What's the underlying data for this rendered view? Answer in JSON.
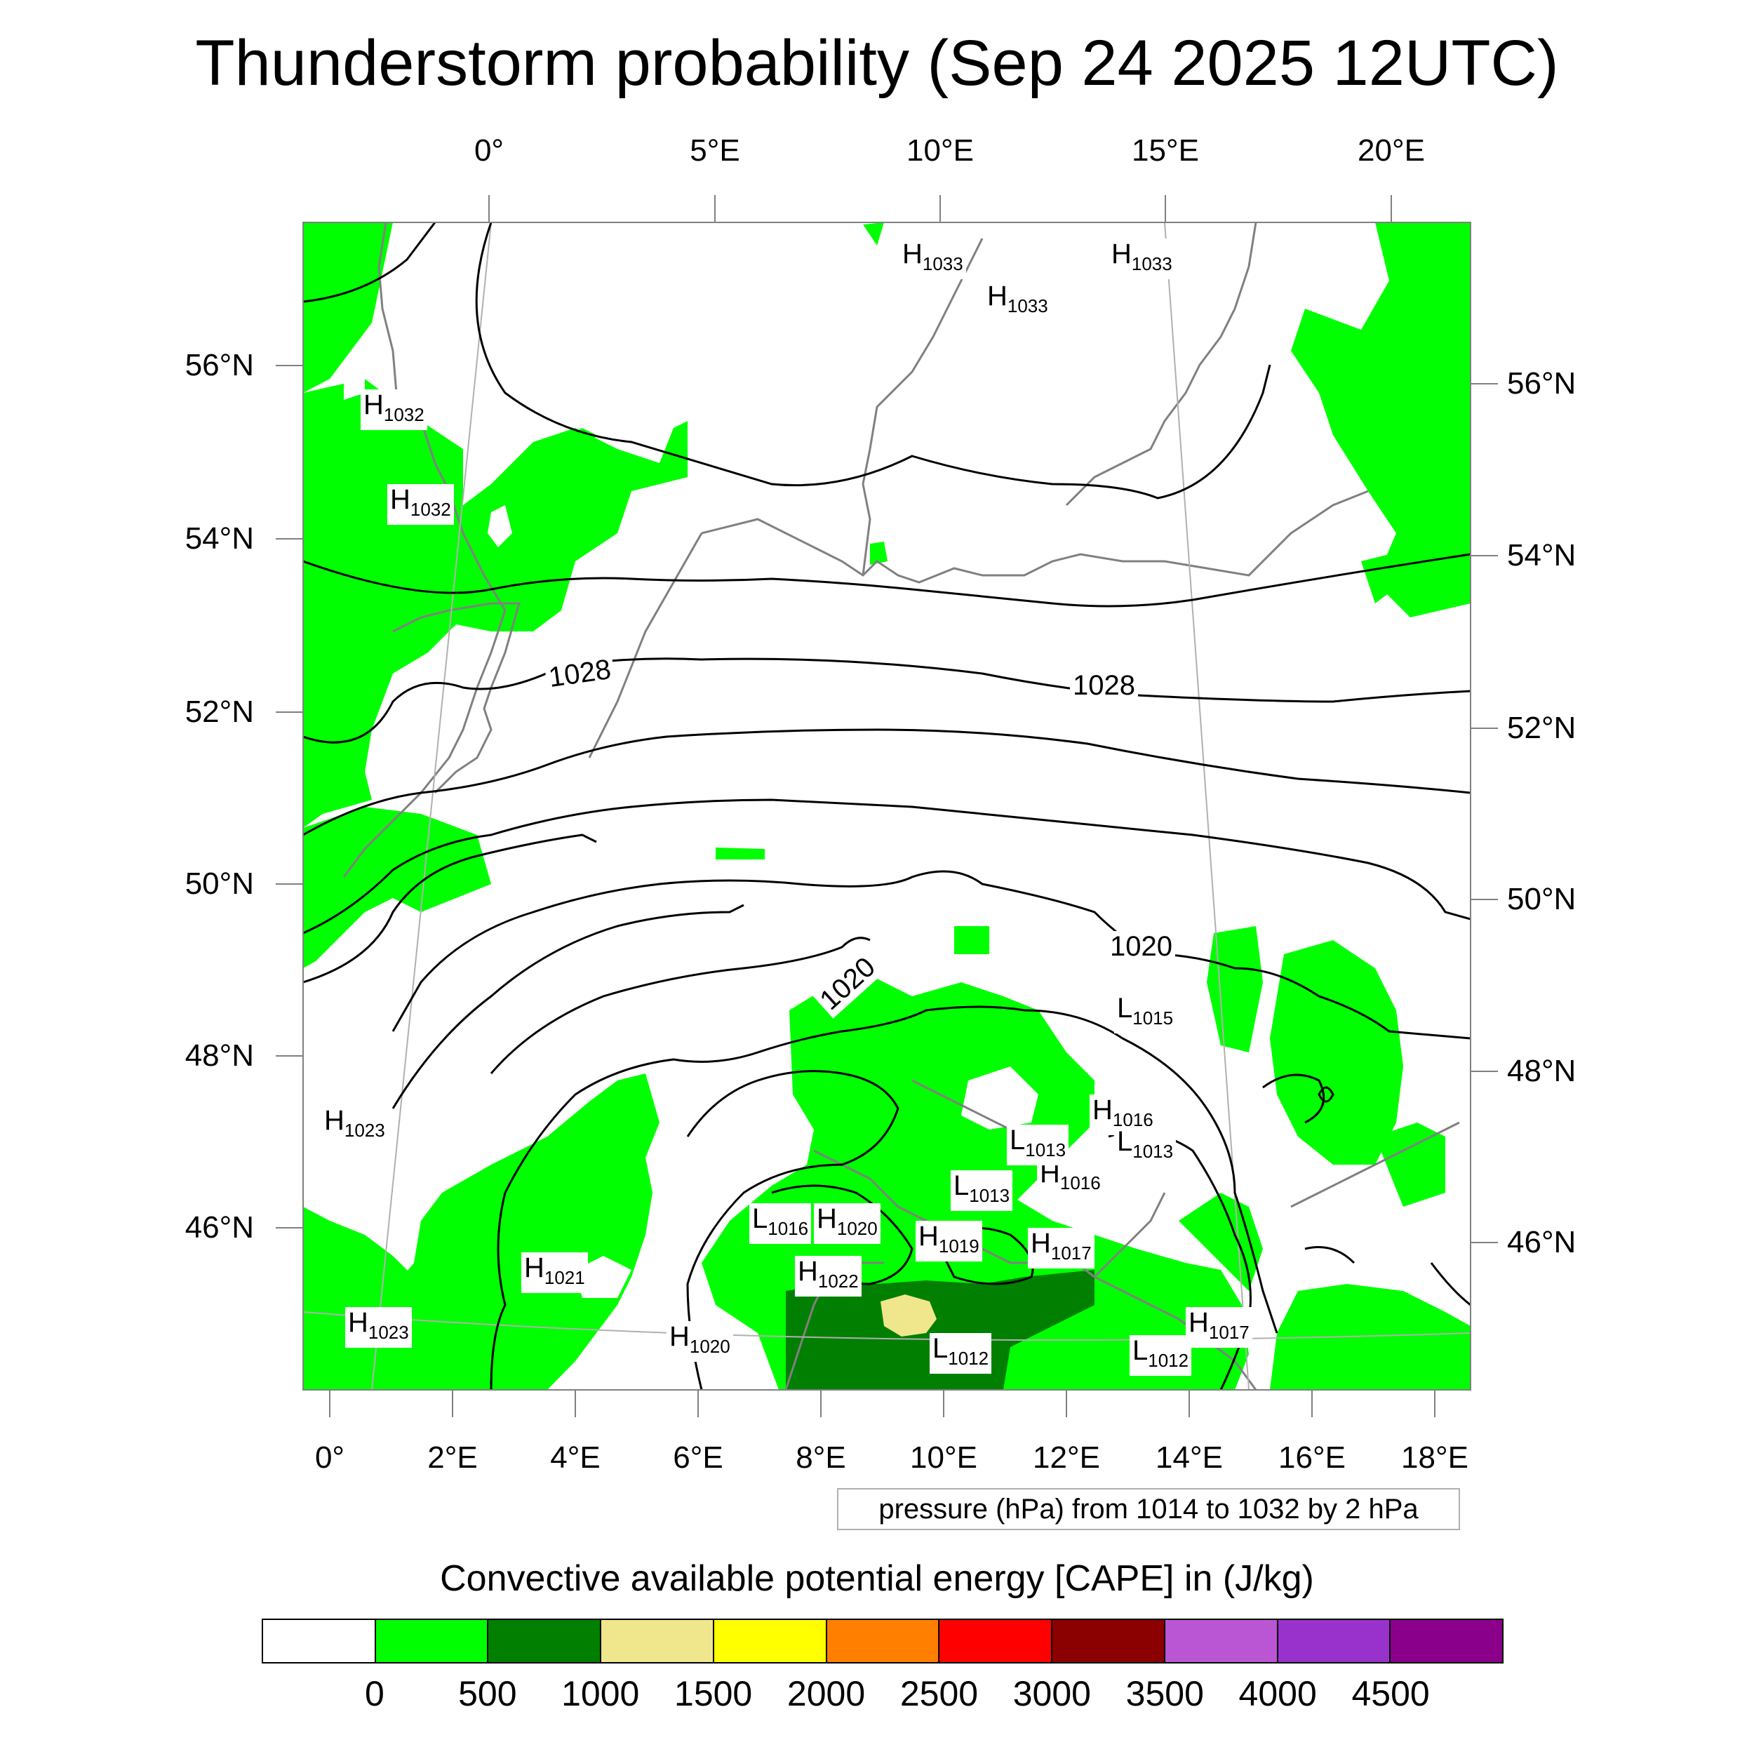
{
  "title": "Thunderstorm probability (Sep 24 2025 12UTC)",
  "map": {
    "top_lon_ticks": [
      "0°",
      "5°E",
      "10°E",
      "15°E",
      "20°E"
    ],
    "bottom_lon_ticks": [
      "0°",
      "2°E",
      "4°E",
      "6°E",
      "8°E",
      "10°E",
      "12°E",
      "14°E",
      "16°E",
      "18°E"
    ],
    "left_lat_ticks": [
      "56°N",
      "54°N",
      "52°N",
      "50°N",
      "48°N",
      "46°N"
    ],
    "right_lat_ticks": [
      "56°N",
      "54°N",
      "52°N",
      "50°N",
      "48°N",
      "46°N"
    ],
    "pressure_centers": [
      {
        "type": "H",
        "value": "1033"
      },
      {
        "type": "H",
        "value": "1033"
      },
      {
        "type": "H",
        "value": "1033"
      },
      {
        "type": "H",
        "value": "1032"
      },
      {
        "type": "H",
        "value": "1032"
      },
      {
        "type": "H",
        "value": "1023"
      },
      {
        "type": "H",
        "value": "1023"
      },
      {
        "type": "H",
        "value": "1021"
      },
      {
        "type": "H",
        "value": "1020"
      },
      {
        "type": "H",
        "value": "1020"
      },
      {
        "type": "H",
        "value": "1022"
      },
      {
        "type": "H",
        "value": "1019"
      },
      {
        "type": "H",
        "value": "1017"
      },
      {
        "type": "H",
        "value": "1016"
      },
      {
        "type": "H",
        "value": "1016"
      },
      {
        "type": "H",
        "value": "1017"
      },
      {
        "type": "L",
        "value": "1016"
      },
      {
        "type": "L",
        "value": "1013"
      },
      {
        "type": "L",
        "value": "1013"
      },
      {
        "type": "L",
        "value": "1013"
      },
      {
        "type": "L",
        "value": "1015"
      },
      {
        "type": "L",
        "value": "1012"
      },
      {
        "type": "L",
        "value": "1012"
      }
    ],
    "isobar_labels": [
      "1028",
      "1028",
      "1020",
      "1020"
    ],
    "colors": {
      "cape_low": "#00ff00",
      "cape_mid": "#007f00",
      "cape_high": "#f0e68c",
      "coastline": "#808080",
      "isobar": "#000000"
    }
  },
  "pressure_note": "pressure (hPa) from 1014 to 1032 by 2 hPa",
  "colorbar": {
    "title": "Convective available potential energy [CAPE] in (J/kg)",
    "colors": [
      "#ffffff",
      "#00ff00",
      "#007f00",
      "#f0e68c",
      "#ffff00",
      "#ff8000",
      "#ff0000",
      "#8b0000",
      "#ba55d3",
      "#9932cc",
      "#8b008b"
    ],
    "labels": [
      "0",
      "500",
      "1000",
      "1500",
      "2000",
      "2500",
      "3000",
      "3500",
      "4000",
      "4500"
    ]
  }
}
